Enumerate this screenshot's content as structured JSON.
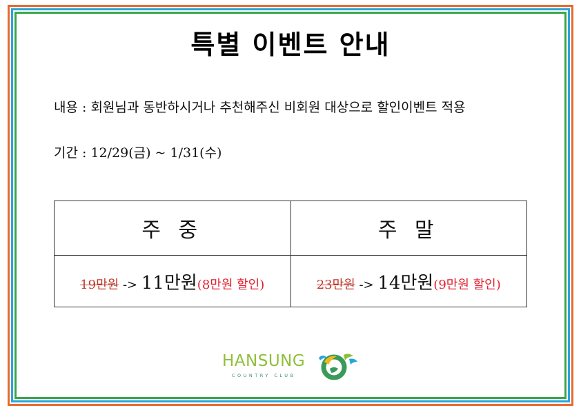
{
  "title": "특별 이벤트 안내",
  "content": {
    "text": "내용 : 회원님과 동반하시거나 추천해주신 비회원 대상으로 할인이벤트 적용"
  },
  "period": {
    "text": "기간 : 12/29(금)  ~  1/31(수)"
  },
  "pricing": {
    "weekday": {
      "header": "주 중",
      "old_price": "19만원",
      "arrow": " -> ",
      "new_price": "11만원",
      "discount": "(8만원 할인)"
    },
    "weekend": {
      "header": "주 말",
      "old_price": "23만원",
      "arrow": " -> ",
      "new_price": "14만원",
      "discount": "(9만원 할인)"
    }
  },
  "logo": {
    "name": "HANSUNG",
    "subtitle": "COUNTRY CLUB",
    "icon": "hansung-emblem-icon"
  },
  "colors": {
    "border_outer": "#e8692d",
    "border_middle": "#2aa5dc",
    "border_inner": "#3aa64a",
    "discount_text": "#e21e2e",
    "logo_green": "#8fbf3a"
  }
}
